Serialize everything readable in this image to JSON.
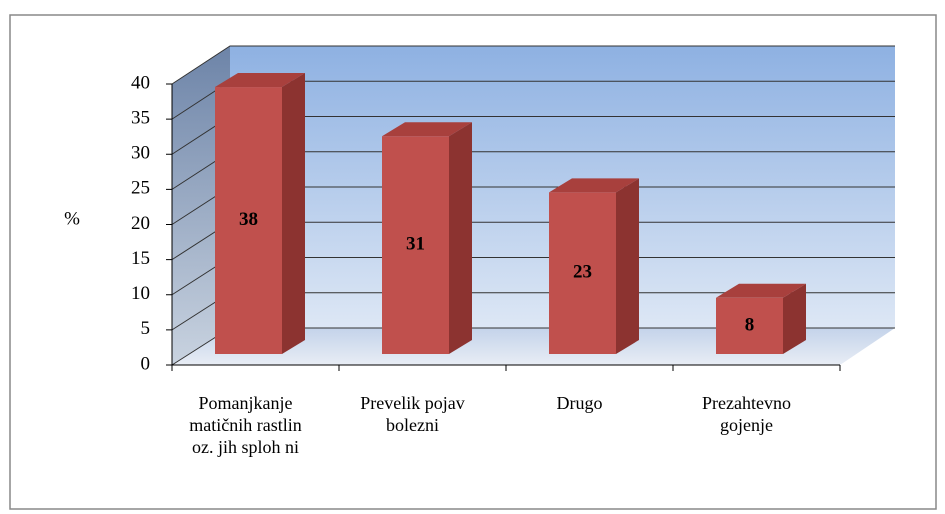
{
  "chart_data": {
    "type": "bar3d",
    "y_label": "%",
    "categories": [
      "Pomanjkanje matičnih rastlin oz. jih sploh ni",
      "Prevelik pojav bolezni",
      "Drugo",
      "Prezahtevno gojenje"
    ],
    "values": [
      38,
      31,
      23,
      8
    ],
    "color": "#c0504d",
    "ylim": [
      0,
      40
    ],
    "yticks": [
      0,
      5,
      10,
      15,
      20,
      25,
      30,
      35,
      40
    ],
    "grid": true
  }
}
